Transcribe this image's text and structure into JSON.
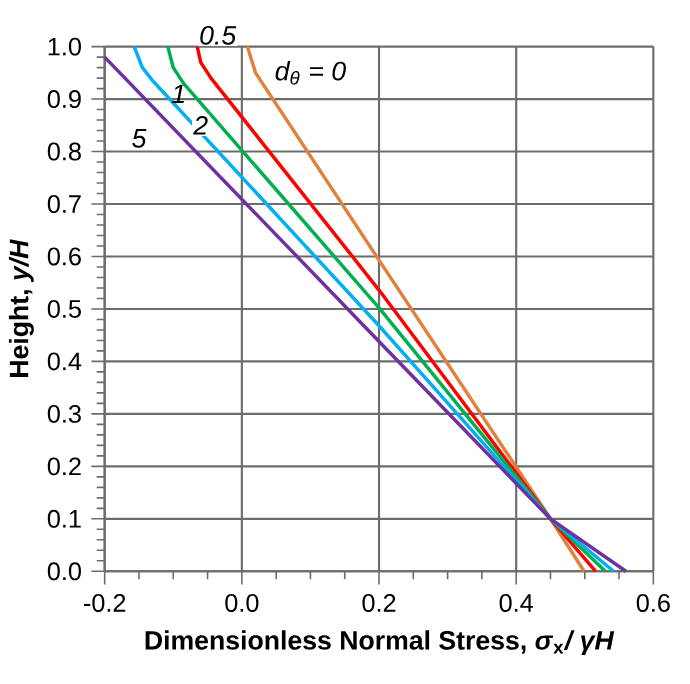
{
  "chart_data": {
    "type": "line",
    "xlabel": "Dimensionless Normal Stress, *σ*$_{x}$*/ γH*",
    "ylabel": "Height, *y/H*",
    "xlim": [
      -0.2,
      0.6
    ],
    "xticks": [
      {
        "value": -0.2,
        "label": "-0.2"
      },
      {
        "value": 0,
        "label": "0.0"
      },
      {
        "value": 0.2,
        "label": "0.2"
      },
      {
        "value": 0.4,
        "label": "0.4"
      },
      {
        "value": 0.6,
        "label": "0.6"
      }
    ],
    "ylim": [
      0,
      1
    ],
    "yticks": [
      {
        "value": 0,
        "label": "0.0"
      },
      {
        "value": 0.1,
        "label": "0.1"
      },
      {
        "value": 0.2,
        "label": "0.2"
      },
      {
        "value": 0.3,
        "label": "0.3"
      },
      {
        "value": 0.4,
        "label": "0.4"
      },
      {
        "value": 0.5,
        "label": "0.5"
      },
      {
        "value": 0.6,
        "label": "0.6"
      },
      {
        "value": 0.7,
        "label": "0.7"
      },
      {
        "value": 0.8,
        "label": "0.8"
      },
      {
        "value": 0.9,
        "label": "0.9"
      },
      {
        "value": 1.0,
        "label": "1.0"
      }
    ],
    "grid": true,
    "marker": "none",
    "line_style": "solid",
    "series": [
      {
        "color": "#e0823d",
        "x": [
          0.008,
          0.02,
          0.2,
          0.45,
          0.499
        ],
        "values": [
          1.0,
          0.95,
          0.593,
          0.1,
          0.0
        ]
      },
      {
        "color": "#ff0000",
        "x": [
          -0.065,
          -0.06,
          -0.045,
          0.2,
          0.45,
          0.516
        ],
        "values": [
          1.0,
          0.97,
          0.94,
          0.536,
          0.1,
          0.0
        ]
      },
      {
        "color": "#00b050",
        "x": [
          -0.108,
          -0.1,
          -0.085,
          0.2,
          0.45,
          0.53
        ],
        "values": [
          1.0,
          0.96,
          0.93,
          0.502,
          0.1,
          0.0
        ]
      },
      {
        "color": "#00b0f0",
        "x": [
          -0.157,
          -0.145,
          -0.13,
          0.2,
          0.45,
          0.542
        ],
        "values": [
          1.0,
          0.96,
          0.935,
          0.468,
          0.1,
          0.0
        ]
      },
      {
        "color": "#7030a0",
        "x": [
          -0.2,
          0.2,
          0.45,
          0.56
        ],
        "values": [
          0.98,
          0.438,
          0.1,
          0.0
        ]
      }
    ],
    "annotations": [
      {
        "text": "d$_{θ}$ = 0",
        "x": 0.1,
        "y": 0.95
      },
      {
        "text": "0.5",
        "x": -0.065,
        "y": 1.0
      },
      {
        "text": "1",
        "x": -0.092,
        "y": 0.91
      },
      {
        "text": "2",
        "x": -0.06,
        "y": 0.85
      },
      {
        "text": "5",
        "x": -0.15,
        "y": 0.825
      }
    ]
  }
}
